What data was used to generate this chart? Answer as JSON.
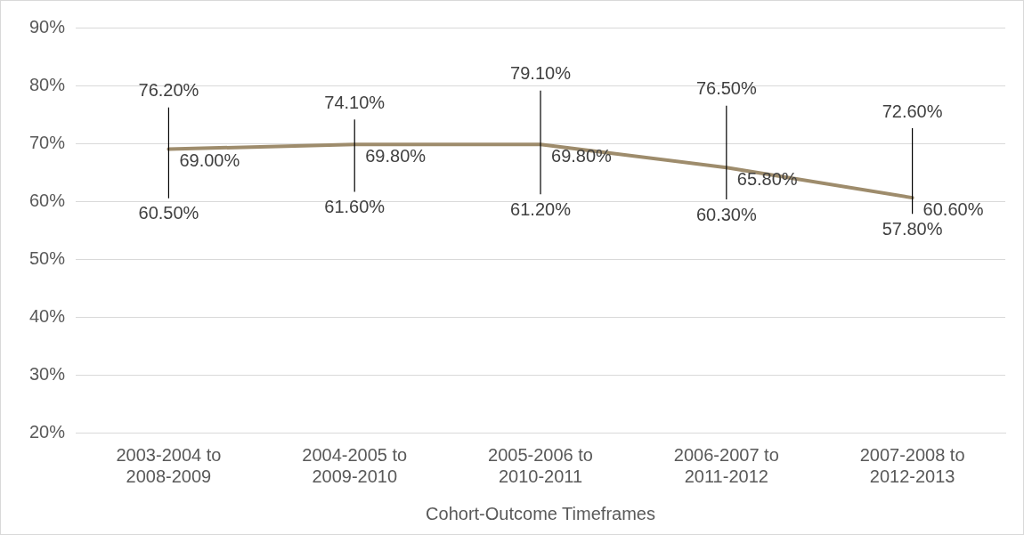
{
  "chart_data": {
    "type": "line",
    "xlabel": "Cohort-Outcome Timeframes",
    "categories": [
      "2003-2004 to\n2008-2009",
      "2004-2005 to\n2009-2010",
      "2005-2006 to\n2010-2011",
      "2006-2007 to\n2011-2012",
      "2007-2008 to\n2012-2013"
    ],
    "series": [
      {
        "color": "#9e8c6c",
        "values": [
          69.0,
          69.8,
          69.8,
          65.8,
          60.6
        ],
        "errors": [
          [
            60.5,
            76.2
          ],
          [
            61.6,
            74.1
          ],
          [
            61.2,
            79.1
          ],
          [
            60.3,
            76.5
          ],
          [
            57.8,
            72.6
          ]
        ],
        "value_labels": [
          "69.00%",
          "69.80%",
          "69.80%",
          "65.80%",
          "60.60%"
        ]
      }
    ],
    "annotations": [
      {
        "text": "76.20%",
        "x": "2003-2004 to\n2008-2009",
        "y": 76.2
      },
      {
        "text": "60.50%",
        "x": "2003-2004 to\n2008-2009",
        "y": 60.5
      },
      {
        "text": "74.10%",
        "x": "2004-2005 to\n2009-2010",
        "y": 74.1
      },
      {
        "text": "61.60%",
        "x": "2004-2005 to\n2009-2010",
        "y": 61.6
      },
      {
        "text": "79.10%",
        "x": "2005-2006 to\n2010-2011",
        "y": 79.1
      },
      {
        "text": "61.20%",
        "x": "2005-2006 to\n2010-2011",
        "y": 61.2
      },
      {
        "text": "76.50%",
        "x": "2006-2007 to\n2011-2012",
        "y": 76.5
      },
      {
        "text": "60.30%",
        "x": "2006-2007 to\n2011-2012",
        "y": 60.3
      },
      {
        "text": "72.60%",
        "x": "2007-2008 to\n2012-2013",
        "y": 72.6
      },
      {
        "text": "57.80%",
        "x": "2007-2008 to\n2012-2013",
        "y": 57.8
      }
    ],
    "ylim": [
      20,
      90
    ],
    "yticks": [
      {
        "value": 20,
        "label": "20%"
      },
      {
        "value": 30,
        "label": "30%"
      },
      {
        "value": 40,
        "label": "40%"
      },
      {
        "value": 50,
        "label": "50%"
      },
      {
        "value": 60,
        "label": "60%"
      },
      {
        "value": 70,
        "label": "70%"
      },
      {
        "value": 80,
        "label": "80%"
      },
      {
        "value": 90,
        "label": "90%"
      }
    ],
    "grid": "y",
    "legend": false,
    "marker": "none",
    "line_style": "solid"
  }
}
